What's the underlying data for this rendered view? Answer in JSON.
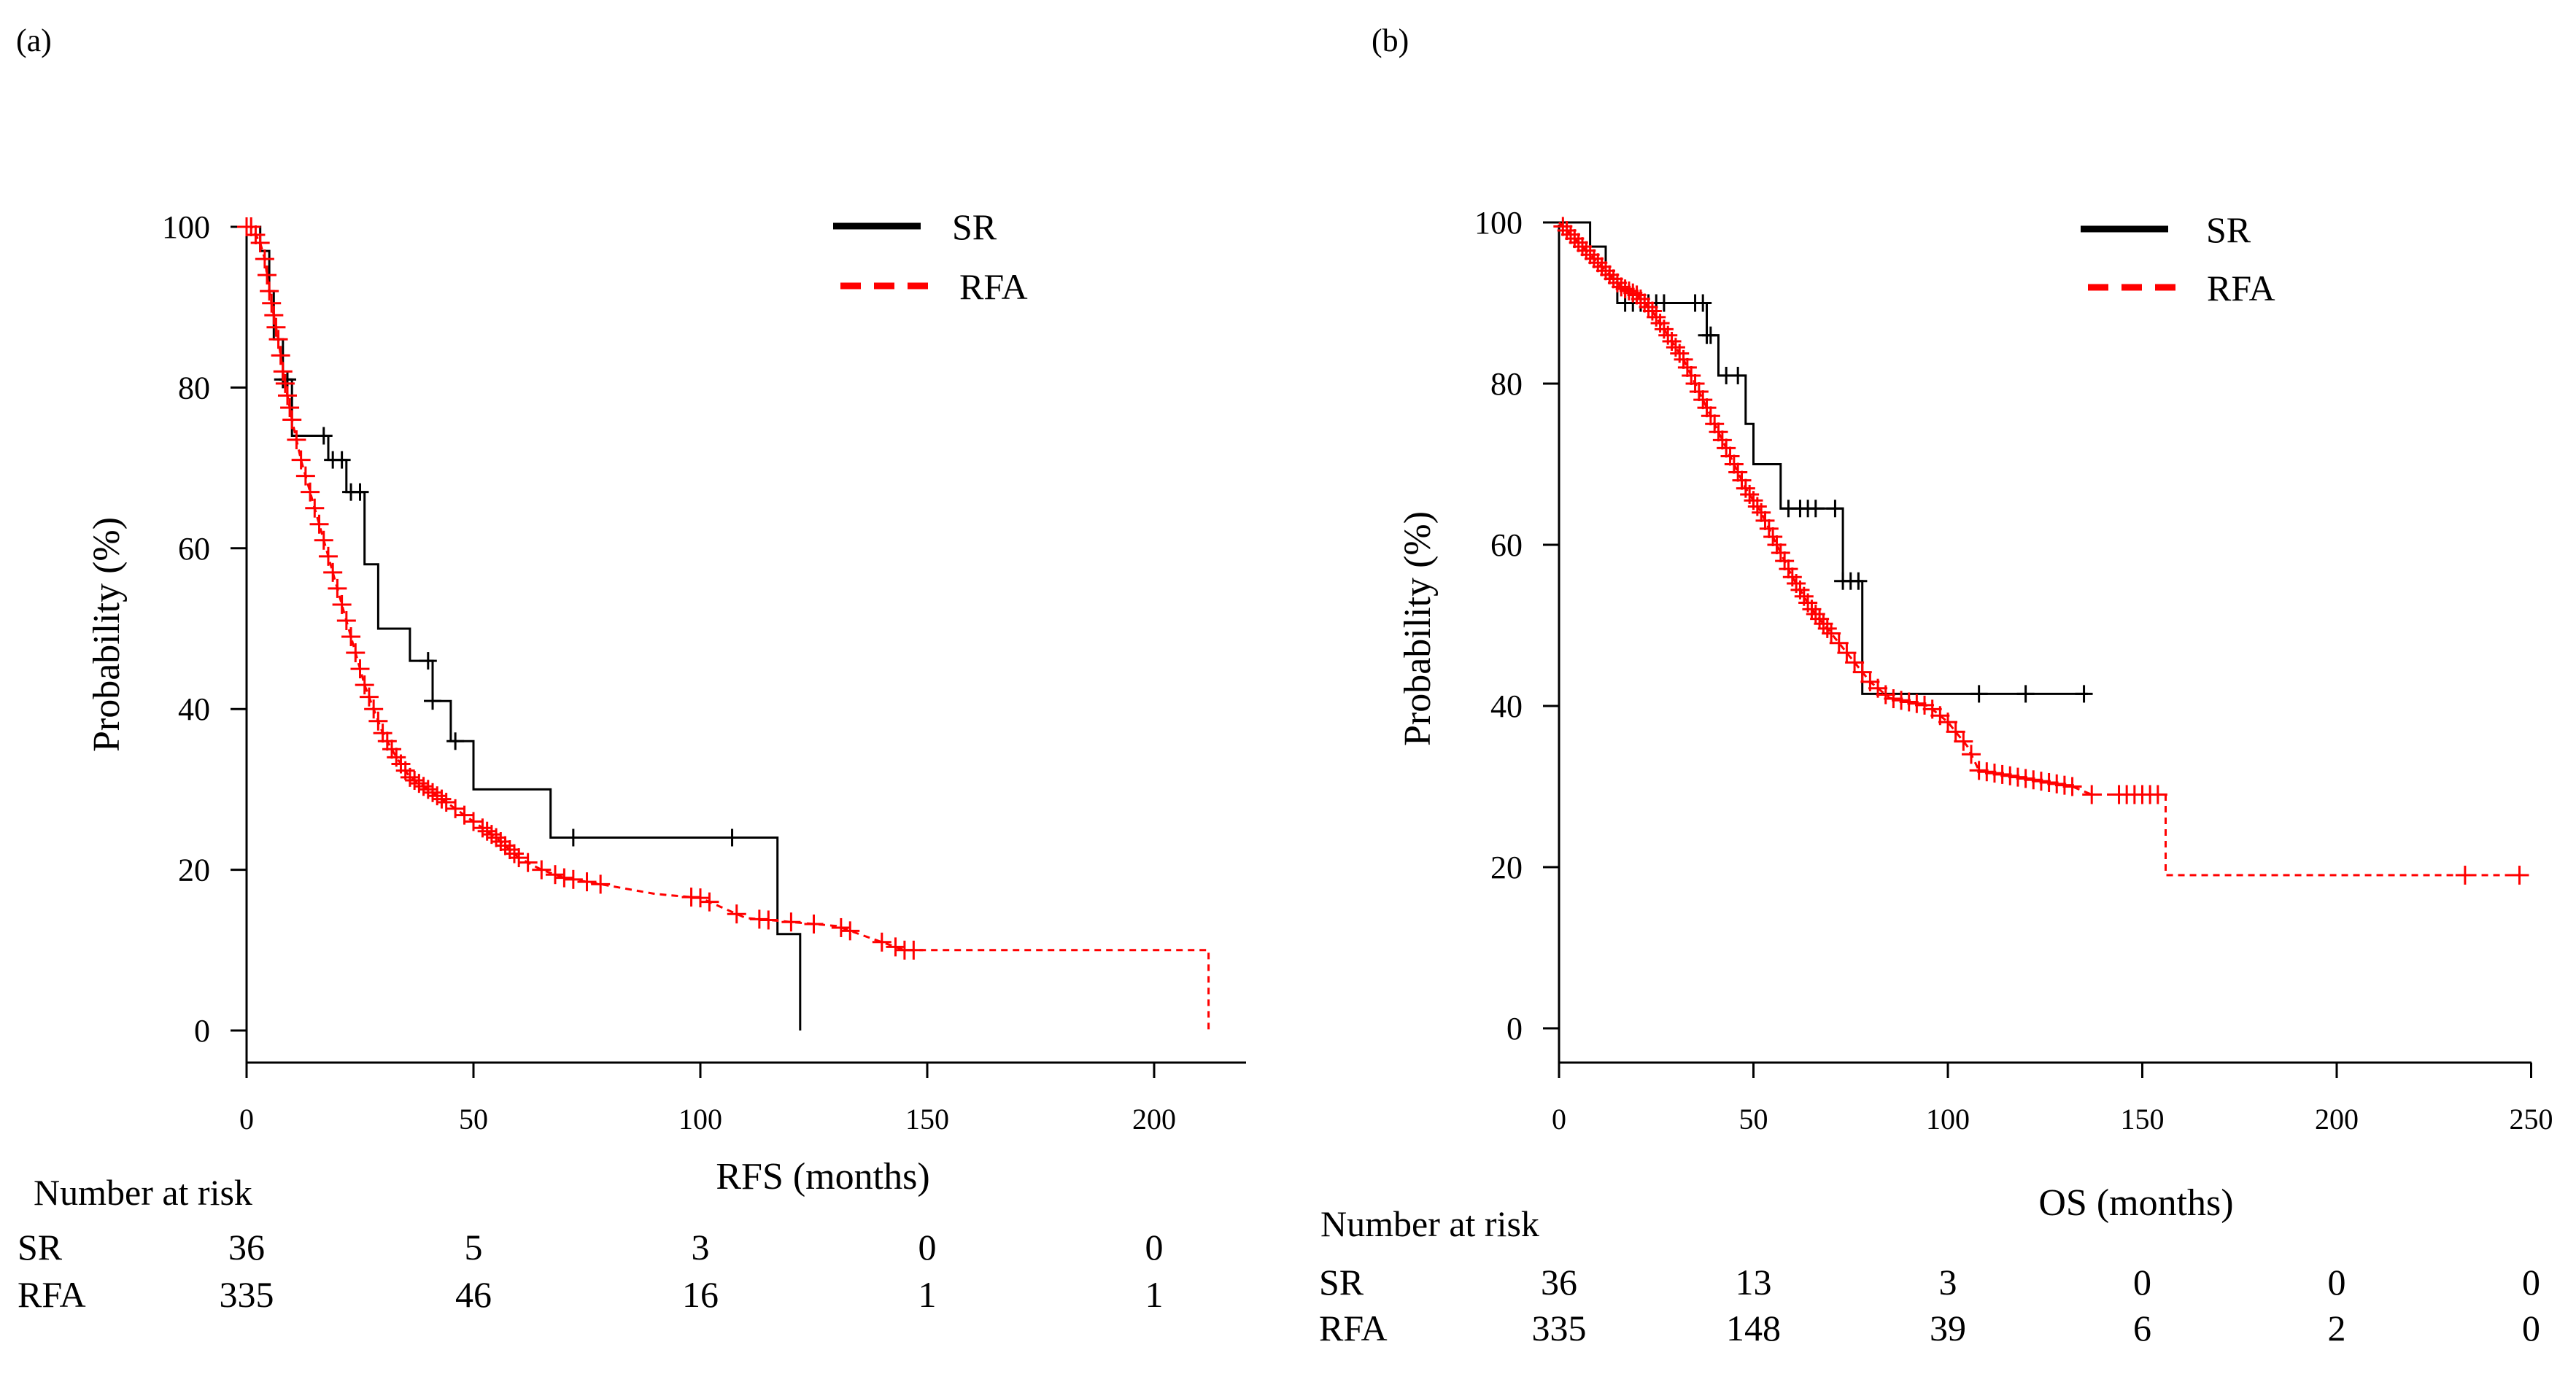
{
  "chart_data": [
    {
      "type": "line",
      "panel_label": "(a)",
      "xlabel": "RFS (months)",
      "ylabel": "Probability (%)",
      "xlim": [
        0,
        220
      ],
      "ylim": [
        0,
        100
      ],
      "xticks": [
        0,
        50,
        100,
        150,
        200
      ],
      "yticks": [
        0,
        20,
        40,
        60,
        80,
        100
      ],
      "legend_position": "top-right",
      "series": [
        {
          "name": "SR",
          "color": "#000000",
          "dash": "solid",
          "steps": [
            [
              0,
              100
            ],
            [
              3,
              100
            ],
            [
              3,
              97
            ],
            [
              5,
              97
            ],
            [
              5,
              92
            ],
            [
              6,
              92
            ],
            [
              6,
              86
            ],
            [
              8,
              86
            ],
            [
              8,
              81
            ],
            [
              10,
              81
            ],
            [
              10,
              74
            ],
            [
              18,
              74
            ],
            [
              18,
              71
            ],
            [
              22,
              71
            ],
            [
              22,
              67
            ],
            [
              26,
              67
            ],
            [
              26,
              58
            ],
            [
              29,
              58
            ],
            [
              29,
              50
            ],
            [
              36,
              50
            ],
            [
              36,
              46
            ],
            [
              41,
              46
            ],
            [
              41,
              41
            ],
            [
              45,
              41
            ],
            [
              45,
              36
            ],
            [
              50,
              36
            ],
            [
              50,
              30
            ],
            [
              67,
              30
            ],
            [
              67,
              24
            ],
            [
              117,
              24
            ],
            [
              117,
              12
            ],
            [
              122,
              12
            ],
            [
              122,
              0
            ]
          ],
          "censor_x": [
            8,
            9,
            17,
            19,
            21,
            23,
            25,
            40,
            41,
            46,
            72,
            107
          ]
        },
        {
          "name": "RFA",
          "color": "#ff0000",
          "dash": "dashed",
          "points": [
            [
              0,
              100
            ],
            [
              1,
              100
            ],
            [
              2,
              99
            ],
            [
              3,
              98
            ],
            [
              4,
              96
            ],
            [
              5,
              92
            ],
            [
              6,
              89
            ],
            [
              7,
              86
            ],
            [
              8,
              82
            ],
            [
              9,
              79
            ],
            [
              10,
              76
            ],
            [
              12,
              71
            ],
            [
              14,
              67
            ],
            [
              16,
              63
            ],
            [
              18,
              59
            ],
            [
              20,
              55
            ],
            [
              22,
              51
            ],
            [
              24,
              47
            ],
            [
              26,
              43
            ],
            [
              28,
              40
            ],
            [
              30,
              37
            ],
            [
              33,
              34
            ],
            [
              36,
              31.5
            ],
            [
              40,
              30
            ],
            [
              45,
              28
            ],
            [
              50,
              26
            ],
            [
              55,
              24
            ],
            [
              60,
              21.5
            ],
            [
              65,
              20
            ],
            [
              70,
              19
            ],
            [
              80,
              18
            ],
            [
              90,
              17
            ],
            [
              100,
              16.5
            ],
            [
              110,
              14
            ],
            [
              120,
              13.5
            ],
            [
              130,
              13
            ],
            [
              140,
              11
            ],
            [
              145,
              10
            ],
            [
              170,
              10
            ],
            [
              212,
              10
            ],
            [
              212,
              0
            ]
          ],
          "censor_x": [
            0,
            1,
            2,
            3,
            4,
            4.5,
            5,
            5.5,
            6,
            6.5,
            7,
            7.5,
            8,
            8.5,
            9,
            9.5,
            10,
            11,
            12,
            13,
            14,
            15,
            16,
            17,
            18,
            19,
            20,
            21,
            22,
            23,
            24,
            25,
            26,
            27,
            28,
            29,
            30,
            31,
            32,
            33,
            34,
            35,
            36,
            37,
            38,
            39,
            40,
            41,
            42,
            43,
            44,
            46,
            48,
            50,
            52,
            53,
            54,
            55,
            56,
            57,
            58,
            59,
            60,
            62,
            65,
            68,
            70,
            72,
            75,
            78,
            98,
            100,
            102,
            108,
            113,
            115,
            120,
            125,
            131,
            133,
            140,
            143,
            145,
            147
          ]
        }
      ],
      "risk_table": {
        "title": "Number at risk",
        "times": [
          0,
          50,
          100,
          150,
          200
        ],
        "rows": [
          {
            "label": "SR",
            "values": [
              "36",
              "5",
              "3",
              "0",
              "0"
            ]
          },
          {
            "label": "RFA",
            "values": [
              "335",
              "46",
              "16",
              "1",
              "1"
            ]
          }
        ]
      }
    },
    {
      "type": "line",
      "panel_label": "(b)",
      "xlabel": "OS (months)",
      "ylabel": "Probability (%)",
      "xlim": [
        0,
        255
      ],
      "ylim": [
        0,
        100
      ],
      "xticks": [
        0,
        50,
        100,
        150,
        200,
        250
      ],
      "yticks": [
        0,
        20,
        40,
        60,
        80,
        100
      ],
      "legend_position": "top-right",
      "series": [
        {
          "name": "SR",
          "color": "#000000",
          "dash": "solid",
          "steps": [
            [
              0,
              100
            ],
            [
              8,
              100
            ],
            [
              8,
              97
            ],
            [
              12,
              97
            ],
            [
              12,
              93
            ],
            [
              15,
              93
            ],
            [
              15,
              90
            ],
            [
              38,
              90
            ],
            [
              38,
              86
            ],
            [
              41,
              86
            ],
            [
              41,
              81
            ],
            [
              48,
              81
            ],
            [
              48,
              75
            ],
            [
              50,
              75
            ],
            [
              50,
              70
            ],
            [
              57,
              70
            ],
            [
              57,
              64.5
            ],
            [
              73,
              64.5
            ],
            [
              73,
              55.5
            ],
            [
              78,
              55.5
            ],
            [
              78,
              41.5
            ],
            [
              136,
              41.5
            ]
          ],
          "censor_x": [
            17,
            19,
            21,
            23,
            25,
            27,
            35,
            37,
            38,
            39,
            43,
            46,
            59,
            62,
            64,
            66,
            71,
            73,
            75,
            77,
            108,
            120,
            135
          ]
        },
        {
          "name": "RFA",
          "color": "#ff0000",
          "dash": "dashed",
          "points": [
            [
              0,
              100
            ],
            [
              4,
              98
            ],
            [
              8,
              96
            ],
            [
              12,
              94
            ],
            [
              16,
              92
            ],
            [
              20,
              91
            ],
            [
              24,
              89
            ],
            [
              28,
              86
            ],
            [
              32,
              83
            ],
            [
              36,
              79
            ],
            [
              40,
              75
            ],
            [
              44,
              71
            ],
            [
              48,
              67
            ],
            [
              52,
              64
            ],
            [
              56,
              60
            ],
            [
              60,
              56
            ],
            [
              65,
              52
            ],
            [
              70,
              49
            ],
            [
              75,
              46
            ],
            [
              80,
              43
            ],
            [
              85,
              41
            ],
            [
              95,
              40
            ],
            [
              100,
              38
            ],
            [
              105,
              35
            ],
            [
              108,
              32
            ],
            [
              120,
              31
            ],
            [
              132,
              30
            ],
            [
              137,
              29
            ],
            [
              156,
              29
            ],
            [
              156,
              19
            ],
            [
              248,
              19
            ]
          ],
          "censor_x": [
            1,
            2,
            3,
            4,
            5,
            6,
            7,
            8,
            9,
            10,
            11,
            12,
            13,
            14,
            15,
            16,
            17,
            18,
            19,
            20,
            21,
            22,
            23,
            24,
            25,
            26,
            27,
            28,
            29,
            30,
            31,
            32,
            33,
            34,
            35,
            36,
            37,
            38,
            39,
            40,
            41,
            42,
            43,
            44,
            45,
            46,
            47,
            48,
            49,
            50,
            51,
            52,
            53,
            54,
            55,
            56,
            57,
            58,
            59,
            60,
            61,
            62,
            63,
            64,
            65,
            66,
            67,
            68,
            69,
            70,
            72,
            74,
            76,
            78,
            80,
            82,
            84,
            86,
            88,
            90,
            92,
            94,
            96,
            98,
            100,
            102,
            104,
            106,
            108,
            110,
            112,
            114,
            116,
            118,
            120,
            122,
            124,
            126,
            128,
            130,
            132,
            137,
            144,
            146,
            148,
            150,
            152,
            154,
            233,
            247
          ]
        }
      ],
      "risk_table": {
        "title": "Number at risk",
        "times": [
          0,
          50,
          100,
          150,
          200,
          250
        ],
        "rows": [
          {
            "label": "SR",
            "values": [
              "36",
              "13",
              "3",
              "0",
              "0",
              "0"
            ]
          },
          {
            "label": "RFA",
            "values": [
              "335",
              "148",
              "39",
              "6",
              "2",
              "0"
            ]
          }
        ]
      }
    }
  ]
}
